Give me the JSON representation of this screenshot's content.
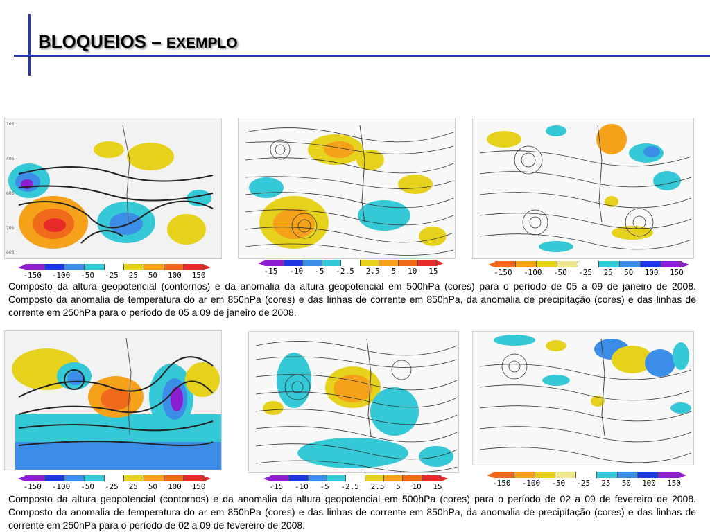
{
  "title": {
    "main": "BLOQUEIOS – ",
    "sub": "EXEMPLO"
  },
  "captions": {
    "jan": "Composto da altura geopotencial (contornos) e da anomalia da altura geopotencial em 500hPa (cores) para o período de 05 a 09 de janeiro de 2008. Composto da anomalia de temperatura do ar em 850hPa (cores) e das linhas de corrente em 850hPa, da anomalia de precipitação (cores) e das linhas de corrente em 250hPa para o período de 05 a 09 de janeiro de 2008.",
    "feb": "Composto da altura geopotencial (contornos) e da anomalia da altura geopotencial em 500hPa (cores) para o período de 02 a 09 de fevereiro de 2008. Composto da anomalia de temperatura do ar em 850hPa (cores) e das linhas de corrente em 850hPa, da anomalia de precipitação (cores) e das linhas de corrente em 250hPa para o período de 02 a 09 de fevereiro de 2008."
  },
  "scales": {
    "geopotential": [
      "-150",
      "-100",
      "-50",
      "-25",
      "25",
      "50",
      "100",
      "150"
    ],
    "temperature": [
      "-15",
      "-10",
      "-5",
      "-2.5",
      "2.5",
      "5",
      "10",
      "15"
    ],
    "precipitation": [
      "-150",
      "-100",
      "-50",
      "-25",
      "25",
      "50",
      "100",
      "150"
    ]
  },
  "colors": {
    "accent": "#2a36b8",
    "purple": "#8e1fd0",
    "dark_blue": "#1e37e0",
    "blue": "#3c8de8",
    "cyan": "#35c8d6",
    "white": "#ffffff",
    "yellow": "#e6d21c",
    "orange": "#f5a21a",
    "dark_orange": "#ef6a1a",
    "red": "#e82a2a"
  }
}
